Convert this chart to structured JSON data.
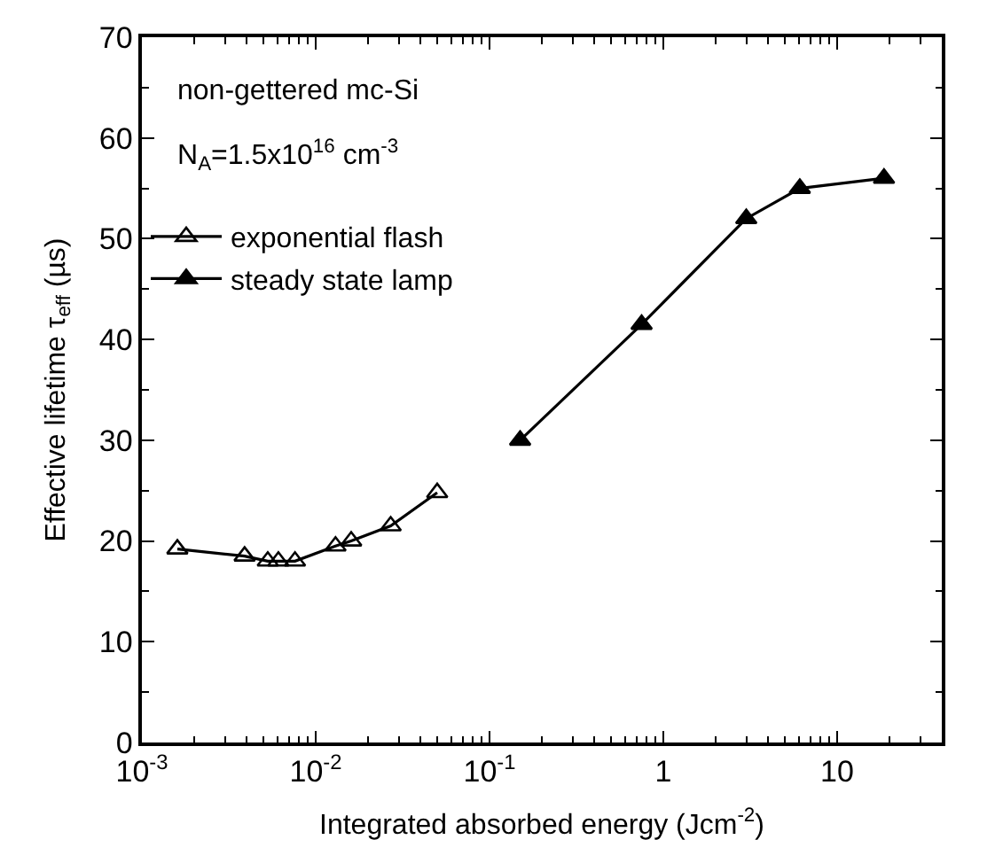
{
  "chart_data": {
    "type": "line",
    "xlabel": "Integrated absorbed energy (Jcm$^{-2}$)",
    "ylabel": "Effective lifetime τ$_{eff}$ (µs)",
    "log": "x",
    "xlim": [
      0.001,
      40
    ],
    "ylim": [
      0,
      70
    ],
    "xticks": [
      {
        "value": 0.001,
        "label": "10$^{-3}$"
      },
      {
        "value": 0.01,
        "label": "10$^{-2}$"
      },
      {
        "value": 0.1,
        "label": "10$^{-1}$"
      },
      1,
      10
    ],
    "yticks": [
      0,
      10,
      20,
      30,
      40,
      50,
      60,
      70
    ],
    "legend": "top left",
    "line_style": "solid",
    "annotations": [
      "non-gettered mc-Si",
      "N$_{A}$=1.5x10$^{16}$ cm$^{-3}$"
    ],
    "series": [
      {
        "name": "exponential flash",
        "color": "#000000",
        "marker": "triangle-open",
        "x": [
          0.0016,
          0.0039,
          0.0053,
          0.0061,
          0.0076,
          0.013,
          0.016,
          0.027,
          0.05
        ],
        "values": [
          19.2,
          18.5,
          18.0,
          18.0,
          18.0,
          19.5,
          20.0,
          21.5,
          24.8
        ]
      },
      {
        "name": "steady state lamp",
        "color": "#000000",
        "marker": "triangle",
        "x": [
          0.15,
          0.75,
          3.0,
          6.1,
          18.6
        ],
        "values": [
          30.0,
          41.5,
          52.0,
          55.0,
          56.0
        ]
      }
    ]
  }
}
